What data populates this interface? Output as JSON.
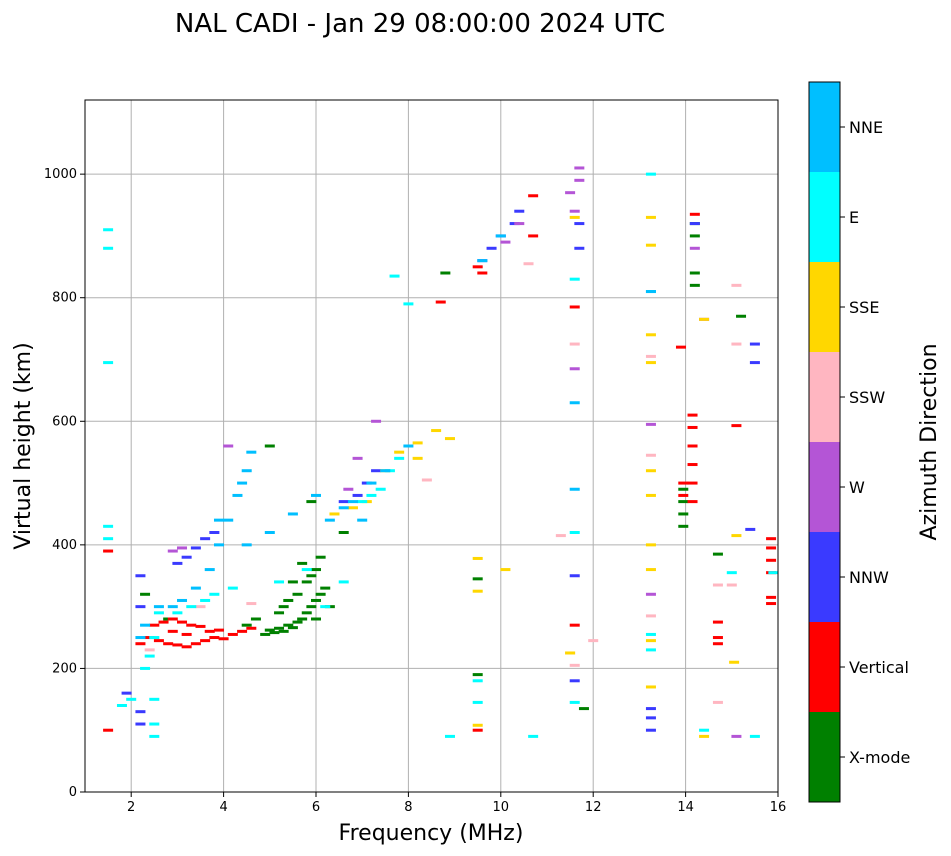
{
  "chart_data": {
    "type": "scatter",
    "title": "NAL CADI - Jan 29 08:00:00 2024 UTC",
    "xlabel": "Frequency (MHz)",
    "ylabel": "Virtual height (km)",
    "xlim": [
      1,
      16
    ],
    "ylim": [
      0,
      1120
    ],
    "xticks": [
      2,
      4,
      6,
      8,
      10,
      12,
      14,
      16
    ],
    "yticks": [
      0,
      200,
      400,
      600,
      800,
      1000
    ],
    "grid": true,
    "colorbar": {
      "label": "Azimuth Direction",
      "categories": [
        {
          "name": "X-mode",
          "color": "#008000"
        },
        {
          "name": "Vertical",
          "color": "#ff0000"
        },
        {
          "name": "NNW",
          "color": "#3a3aff"
        },
        {
          "name": "W",
          "color": "#b455d6"
        },
        {
          "name": "SSW",
          "color": "#ffb6c1"
        },
        {
          "name": "SSE",
          "color": "#ffd700"
        },
        {
          "name": "E",
          "color": "#00ffff"
        },
        {
          "name": "NNE",
          "color": "#00bfff"
        }
      ]
    },
    "series": [
      {
        "name": "X-mode",
        "points": [
          [
            4.9,
            255
          ],
          [
            5.0,
            262
          ],
          [
            5.1,
            258
          ],
          [
            5.2,
            265
          ],
          [
            5.3,
            260
          ],
          [
            5.4,
            270
          ],
          [
            5.5,
            266
          ],
          [
            5.6,
            275
          ],
          [
            5.7,
            280
          ],
          [
            5.8,
            290
          ],
          [
            5.9,
            300
          ],
          [
            6.0,
            310
          ],
          [
            6.1,
            320
          ],
          [
            5.3,
            300
          ],
          [
            5.6,
            320
          ],
          [
            5.8,
            340
          ],
          [
            5.9,
            350
          ],
          [
            6.0,
            360
          ],
          [
            5.5,
            340
          ],
          [
            6.1,
            380
          ],
          [
            5.7,
            370
          ],
          [
            4.5,
            270
          ],
          [
            4.7,
            280
          ],
          [
            5.2,
            290
          ],
          [
            5.4,
            310
          ],
          [
            6.2,
            330
          ],
          [
            5.0,
            560
          ],
          [
            5.9,
            470
          ],
          [
            6.6,
            420
          ],
          [
            8.8,
            840
          ],
          [
            9.5,
            190
          ],
          [
            9.5,
            345
          ],
          [
            11.8,
            135
          ],
          [
            13.95,
            430
          ],
          [
            13.95,
            450
          ],
          [
            13.95,
            470
          ],
          [
            13.95,
            490
          ],
          [
            14.2,
            820
          ],
          [
            14.2,
            840
          ],
          [
            14.2,
            900
          ],
          [
            14.2,
            920
          ],
          [
            14.7,
            385
          ],
          [
            15.2,
            770
          ],
          [
            2.3,
            320
          ],
          [
            2.8,
            280
          ],
          [
            6.0,
            280
          ],
          [
            6.3,
            300
          ]
        ]
      },
      {
        "name": "Vertical",
        "points": [
          [
            2.2,
            240
          ],
          [
            2.4,
            250
          ],
          [
            2.6,
            245
          ],
          [
            2.8,
            240
          ],
          [
            3.0,
            238
          ],
          [
            3.2,
            235
          ],
          [
            3.4,
            240
          ],
          [
            3.6,
            245
          ],
          [
            3.8,
            250
          ],
          [
            4.0,
            248
          ],
          [
            4.2,
            255
          ],
          [
            4.4,
            260
          ],
          [
            4.6,
            265
          ],
          [
            2.5,
            270
          ],
          [
            2.7,
            275
          ],
          [
            2.9,
            280
          ],
          [
            3.1,
            275
          ],
          [
            3.3,
            270
          ],
          [
            3.5,
            268
          ],
          [
            3.7,
            260
          ],
          [
            3.9,
            262
          ],
          [
            2.9,
            260
          ],
          [
            3.2,
            255
          ],
          [
            1.5,
            100
          ],
          [
            1.5,
            390
          ],
          [
            9.5,
            100
          ],
          [
            9.5,
            850
          ],
          [
            9.6,
            840
          ],
          [
            10.7,
            965
          ],
          [
            10.7,
            900
          ],
          [
            11.6,
            270
          ],
          [
            11.6,
            785
          ],
          [
            8.7,
            793
          ],
          [
            13.9,
            720
          ],
          [
            13.95,
            480
          ],
          [
            13.95,
            500
          ],
          [
            14.15,
            470
          ],
          [
            14.15,
            500
          ],
          [
            14.15,
            530
          ],
          [
            14.15,
            560
          ],
          [
            14.15,
            590
          ],
          [
            14.15,
            610
          ],
          [
            14.7,
            240
          ],
          [
            14.7,
            250
          ],
          [
            14.7,
            275
          ],
          [
            15.1,
            593
          ],
          [
            15.85,
            355
          ],
          [
            15.85,
            375
          ],
          [
            15.85,
            395
          ],
          [
            15.85,
            410
          ],
          [
            15.85,
            305
          ],
          [
            15.85,
            315
          ],
          [
            14.2,
            935
          ]
        ]
      },
      {
        "name": "NNW",
        "points": [
          [
            2.2,
            350
          ],
          [
            2.2,
            300
          ],
          [
            1.9,
            160
          ],
          [
            2.2,
            130
          ],
          [
            2.2,
            110
          ],
          [
            3.0,
            370
          ],
          [
            3.2,
            380
          ],
          [
            3.4,
            395
          ],
          [
            3.6,
            410
          ],
          [
            3.8,
            420
          ],
          [
            6.6,
            470
          ],
          [
            6.9,
            480
          ],
          [
            7.1,
            500
          ],
          [
            7.3,
            520
          ],
          [
            9.6,
            860
          ],
          [
            9.8,
            880
          ],
          [
            10.0,
            900
          ],
          [
            10.3,
            920
          ],
          [
            10.4,
            940
          ],
          [
            11.6,
            350
          ],
          [
            11.6,
            180
          ],
          [
            11.7,
            920
          ],
          [
            11.7,
            880
          ],
          [
            13.25,
            100
          ],
          [
            13.25,
            120
          ],
          [
            13.25,
            135
          ],
          [
            14.2,
            920
          ],
          [
            15.4,
            425
          ],
          [
            15.5,
            695
          ],
          [
            15.5,
            725
          ]
        ]
      },
      {
        "name": "W",
        "points": [
          [
            2.9,
            390
          ],
          [
            3.1,
            395
          ],
          [
            4.1,
            560
          ],
          [
            6.7,
            490
          ],
          [
            6.9,
            540
          ],
          [
            7.3,
            600
          ],
          [
            10.1,
            890
          ],
          [
            10.4,
            920
          ],
          [
            11.5,
            970
          ],
          [
            11.7,
            1010
          ],
          [
            11.7,
            990
          ],
          [
            11.6,
            685
          ],
          [
            11.6,
            940
          ],
          [
            13.25,
            595
          ],
          [
            13.25,
            320
          ],
          [
            14.2,
            880
          ],
          [
            14.4,
            765
          ],
          [
            15.1,
            90
          ]
        ]
      },
      {
        "name": "SSW",
        "points": [
          [
            2.4,
            230
          ],
          [
            3.5,
            300
          ],
          [
            4.6,
            305
          ],
          [
            8.4,
            505
          ],
          [
            10.6,
            855
          ],
          [
            11.3,
            415
          ],
          [
            11.5,
            225
          ],
          [
            11.6,
            205
          ],
          [
            11.6,
            725
          ],
          [
            12.0,
            245
          ],
          [
            13.25,
            285
          ],
          [
            13.25,
            705
          ],
          [
            13.25,
            545
          ],
          [
            14.7,
            335
          ],
          [
            14.7,
            145
          ],
          [
            15.0,
            335
          ],
          [
            15.1,
            725
          ],
          [
            15.1,
            820
          ]
        ]
      },
      {
        "name": "SSE",
        "points": [
          [
            6.4,
            450
          ],
          [
            6.8,
            460
          ],
          [
            7.1,
            470
          ],
          [
            7.5,
            520
          ],
          [
            7.8,
            550
          ],
          [
            8.2,
            565
          ],
          [
            8.2,
            540
          ],
          [
            8.6,
            585
          ],
          [
            8.9,
            572
          ],
          [
            9.5,
            378
          ],
          [
            9.5,
            325
          ],
          [
            9.5,
            108
          ],
          [
            10.1,
            360
          ],
          [
            11.6,
            930
          ],
          [
            11.5,
            225
          ],
          [
            13.25,
            170
          ],
          [
            13.25,
            245
          ],
          [
            13.25,
            360
          ],
          [
            13.25,
            400
          ],
          [
            13.25,
            480
          ],
          [
            13.25,
            520
          ],
          [
            13.25,
            695
          ],
          [
            13.25,
            740
          ],
          [
            13.25,
            930
          ],
          [
            13.25,
            885
          ],
          [
            14.4,
            90
          ],
          [
            14.4,
            765
          ],
          [
            15.05,
            210
          ],
          [
            15.1,
            415
          ]
        ]
      },
      {
        "name": "E",
        "points": [
          [
            1.5,
            910
          ],
          [
            1.5,
            880
          ],
          [
            1.5,
            695
          ],
          [
            1.5,
            430
          ],
          [
            1.5,
            410
          ],
          [
            1.8,
            140
          ],
          [
            2.0,
            150
          ],
          [
            2.5,
            90
          ],
          [
            2.5,
            110
          ],
          [
            2.5,
            150
          ],
          [
            2.3,
            200
          ],
          [
            2.4,
            220
          ],
          [
            2.5,
            250
          ],
          [
            2.6,
            290
          ],
          [
            3.0,
            290
          ],
          [
            3.3,
            300
          ],
          [
            3.6,
            310
          ],
          [
            3.8,
            320
          ],
          [
            4.2,
            330
          ],
          [
            5.2,
            340
          ],
          [
            5.8,
            360
          ],
          [
            6.2,
            300
          ],
          [
            6.6,
            340
          ],
          [
            7.0,
            470
          ],
          [
            7.2,
            480
          ],
          [
            7.4,
            490
          ],
          [
            7.6,
            520
          ],
          [
            7.8,
            540
          ],
          [
            8.0,
            790
          ],
          [
            7.7,
            835
          ],
          [
            8.9,
            90
          ],
          [
            9.5,
            180
          ],
          [
            9.5,
            145
          ],
          [
            10.7,
            90
          ],
          [
            11.6,
            145
          ],
          [
            11.6,
            830
          ],
          [
            11.6,
            420
          ],
          [
            13.25,
            230
          ],
          [
            13.25,
            255
          ],
          [
            13.25,
            810
          ],
          [
            13.25,
            1000
          ],
          [
            14.4,
            100
          ],
          [
            15.0,
            355
          ],
          [
            15.5,
            90
          ],
          [
            15.9,
            355
          ]
        ]
      },
      {
        "name": "NNE",
        "points": [
          [
            2.6,
            300
          ],
          [
            2.9,
            300
          ],
          [
            3.1,
            310
          ],
          [
            3.4,
            330
          ],
          [
            3.7,
            360
          ],
          [
            3.9,
            400
          ],
          [
            4.1,
            440
          ],
          [
            4.3,
            480
          ],
          [
            4.5,
            520
          ],
          [
            4.6,
            550
          ],
          [
            4.4,
            500
          ],
          [
            3.9,
            440
          ],
          [
            4.5,
            400
          ],
          [
            5.0,
            420
          ],
          [
            5.5,
            450
          ],
          [
            6.0,
            480
          ],
          [
            6.3,
            440
          ],
          [
            6.6,
            460
          ],
          [
            6.8,
            470
          ],
          [
            7.0,
            440
          ],
          [
            7.2,
            500
          ],
          [
            7.5,
            520
          ],
          [
            8.0,
            560
          ],
          [
            9.6,
            860
          ],
          [
            10.0,
            900
          ],
          [
            11.6,
            490
          ],
          [
            11.6,
            630
          ],
          [
            13.25,
            810
          ],
          [
            2.2,
            250
          ],
          [
            2.3,
            270
          ]
        ]
      }
    ]
  }
}
